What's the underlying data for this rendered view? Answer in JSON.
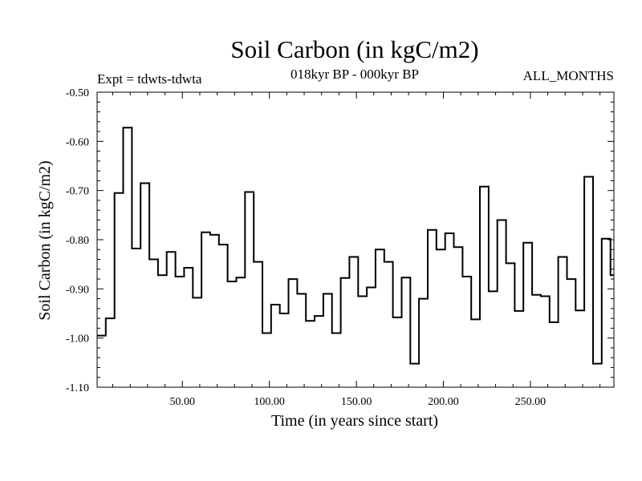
{
  "title": "Soil Carbon (in kgC/m2)",
  "experiment": "Expt = tdwts-tdwta",
  "period": "018kyr BP - 000kyr BP",
  "months": "ALL_MONTHS",
  "chart_data": {
    "type": "line",
    "style": "step",
    "title": "Soil Carbon (in kgC/m2)",
    "xlabel": "Time (in years since start)",
    "ylabel": "Soil Carbon (in kgC/m2)",
    "xlim": [
      1,
      298
    ],
    "ylim": [
      -1.1,
      -0.5
    ],
    "x_ticks": [
      50,
      100,
      150,
      200,
      250
    ],
    "x_tick_labels": [
      "50.00",
      "100.00",
      "150.00",
      "200.00",
      "250.00"
    ],
    "y_ticks": [
      -0.5,
      -0.6,
      -0.7,
      -0.8,
      -0.9,
      -1.0,
      -1.1
    ],
    "y_tick_labels": [
      "-0.50",
      "-0.60",
      "-0.70",
      "-0.80",
      "-0.90",
      "-1.00",
      "-1.10"
    ],
    "grid": false,
    "x": [
      1,
      6,
      11,
      16,
      21,
      26,
      31,
      36,
      41,
      46,
      51,
      56,
      61,
      66,
      71,
      76,
      81,
      86,
      91,
      96,
      101,
      106,
      111,
      116,
      121,
      126,
      131,
      136,
      141,
      146,
      151,
      156,
      161,
      166,
      171,
      176,
      181,
      186,
      191,
      196,
      201,
      206,
      211,
      216,
      221,
      226,
      231,
      236,
      241,
      246,
      251,
      256,
      261,
      266,
      271,
      276,
      281,
      286,
      291,
      296,
      298
    ],
    "values": [
      -0.995,
      -0.96,
      -0.705,
      -0.572,
      -0.818,
      -0.685,
      -0.84,
      -0.872,
      -0.825,
      -0.875,
      -0.857,
      -0.918,
      -0.785,
      -0.79,
      -0.81,
      -0.885,
      -0.877,
      -0.703,
      -0.845,
      -0.99,
      -0.932,
      -0.95,
      -0.88,
      -0.91,
      -0.965,
      -0.955,
      -0.91,
      -0.99,
      -0.878,
      -0.835,
      -0.915,
      -0.897,
      -0.82,
      -0.845,
      -0.958,
      -0.877,
      -1.052,
      -0.92,
      -0.78,
      -0.82,
      -0.787,
      -0.815,
      -0.875,
      -0.962,
      -0.692,
      -0.905,
      -0.76,
      -0.848,
      -0.945,
      -0.806,
      -0.912,
      -0.915,
      -0.968,
      -0.835,
      -0.88,
      -0.944,
      -0.672,
      -1.052,
      -0.798,
      -0.872,
      -0.872
    ]
  }
}
